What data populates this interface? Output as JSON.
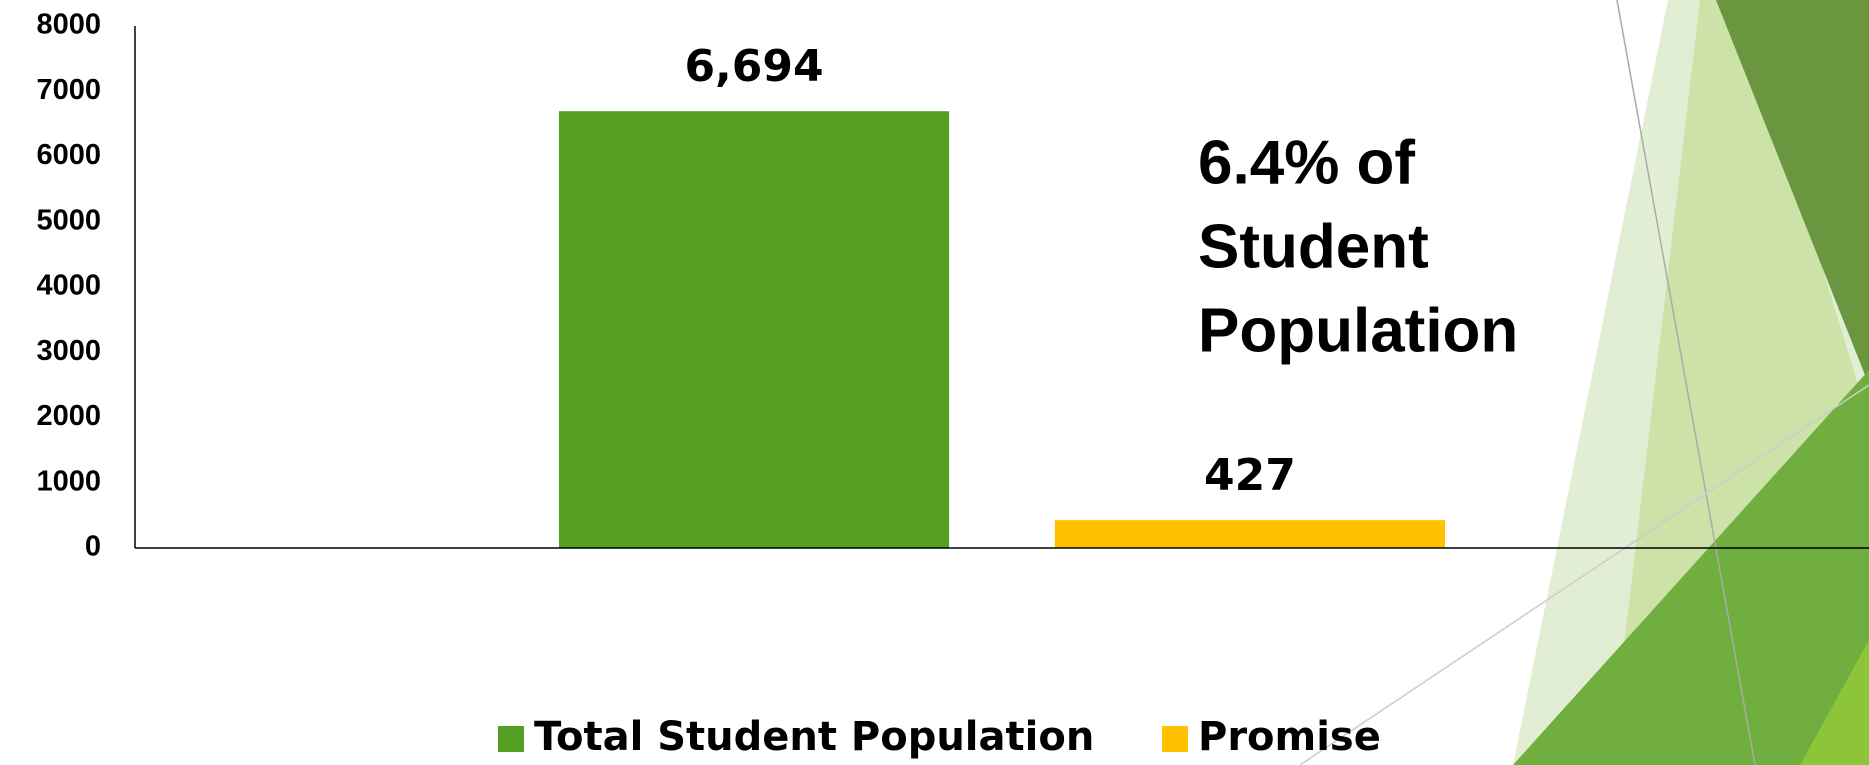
{
  "chart_data": {
    "type": "bar",
    "categories": [
      null
    ],
    "series": [
      {
        "name": "Total Student Population",
        "color": "#55a022",
        "values": [
          6694
        ],
        "value_labels": [
          "6,694"
        ]
      },
      {
        "name": "Promise",
        "color": "#ffc000",
        "values": [
          427
        ],
        "value_labels": [
          "427"
        ]
      }
    ],
    "annotation": [
      "6.4% of",
      "Student",
      "Population"
    ],
    "ylim": [
      0,
      8000
    ],
    "yticks": [
      0,
      1000,
      2000,
      3000,
      4000,
      5000,
      6000,
      7000,
      8000
    ],
    "grid": false,
    "legend": "bottom"
  }
}
